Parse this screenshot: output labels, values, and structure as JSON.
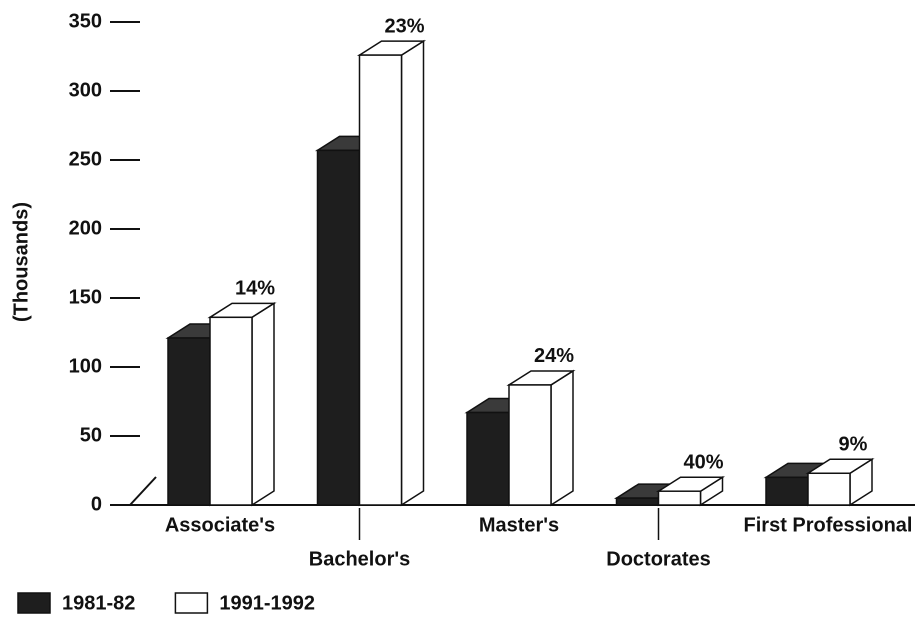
{
  "chart_data": {
    "type": "bar3d",
    "y_axis_label": "(Thousands)",
    "categories": [
      "Associate's",
      "Bachelor's",
      "Master's",
      "Doctorates",
      "First Professional"
    ],
    "series": [
      {
        "name": "1981-82",
        "color": "#1e1e1e",
        "values": [
          121,
          257,
          67,
          5,
          20
        ]
      },
      {
        "name": "1991-1992",
        "color": "#ffffff",
        "values": [
          136,
          326,
          87,
          10,
          23
        ]
      }
    ],
    "annotations": [
      "14%",
      "23%",
      "24%",
      "40%",
      "9%"
    ],
    "ylim": [
      0,
      350
    ],
    "yticks": [
      0,
      50,
      100,
      150,
      200,
      250,
      300,
      350
    ],
    "legend": "bottom-left"
  }
}
